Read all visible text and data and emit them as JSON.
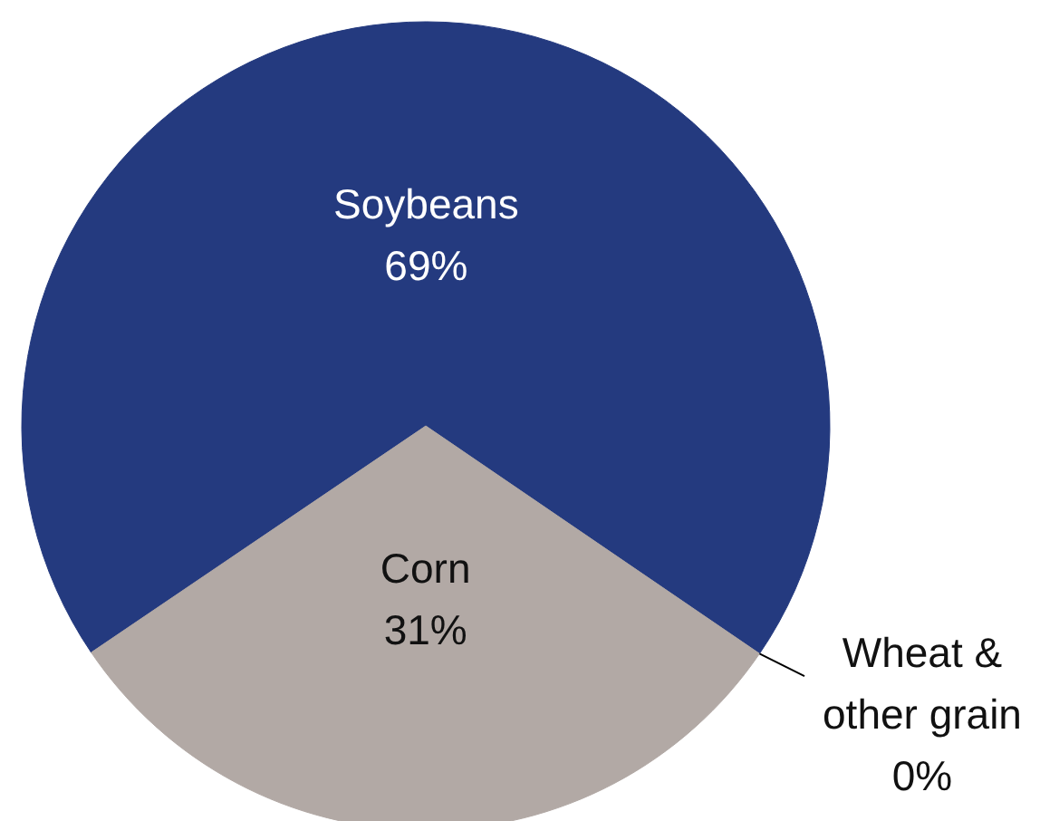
{
  "chart_data": {
    "type": "pie",
    "categories": [
      "Soybeans",
      "Wheat & other grain",
      "Corn"
    ],
    "values": [
      69,
      0,
      31
    ],
    "colors": [
      "#243a7f",
      "#f2b42a",
      "#b2a9a5"
    ],
    "value_labels": [
      "69%",
      "0%",
      "31%"
    ]
  }
}
